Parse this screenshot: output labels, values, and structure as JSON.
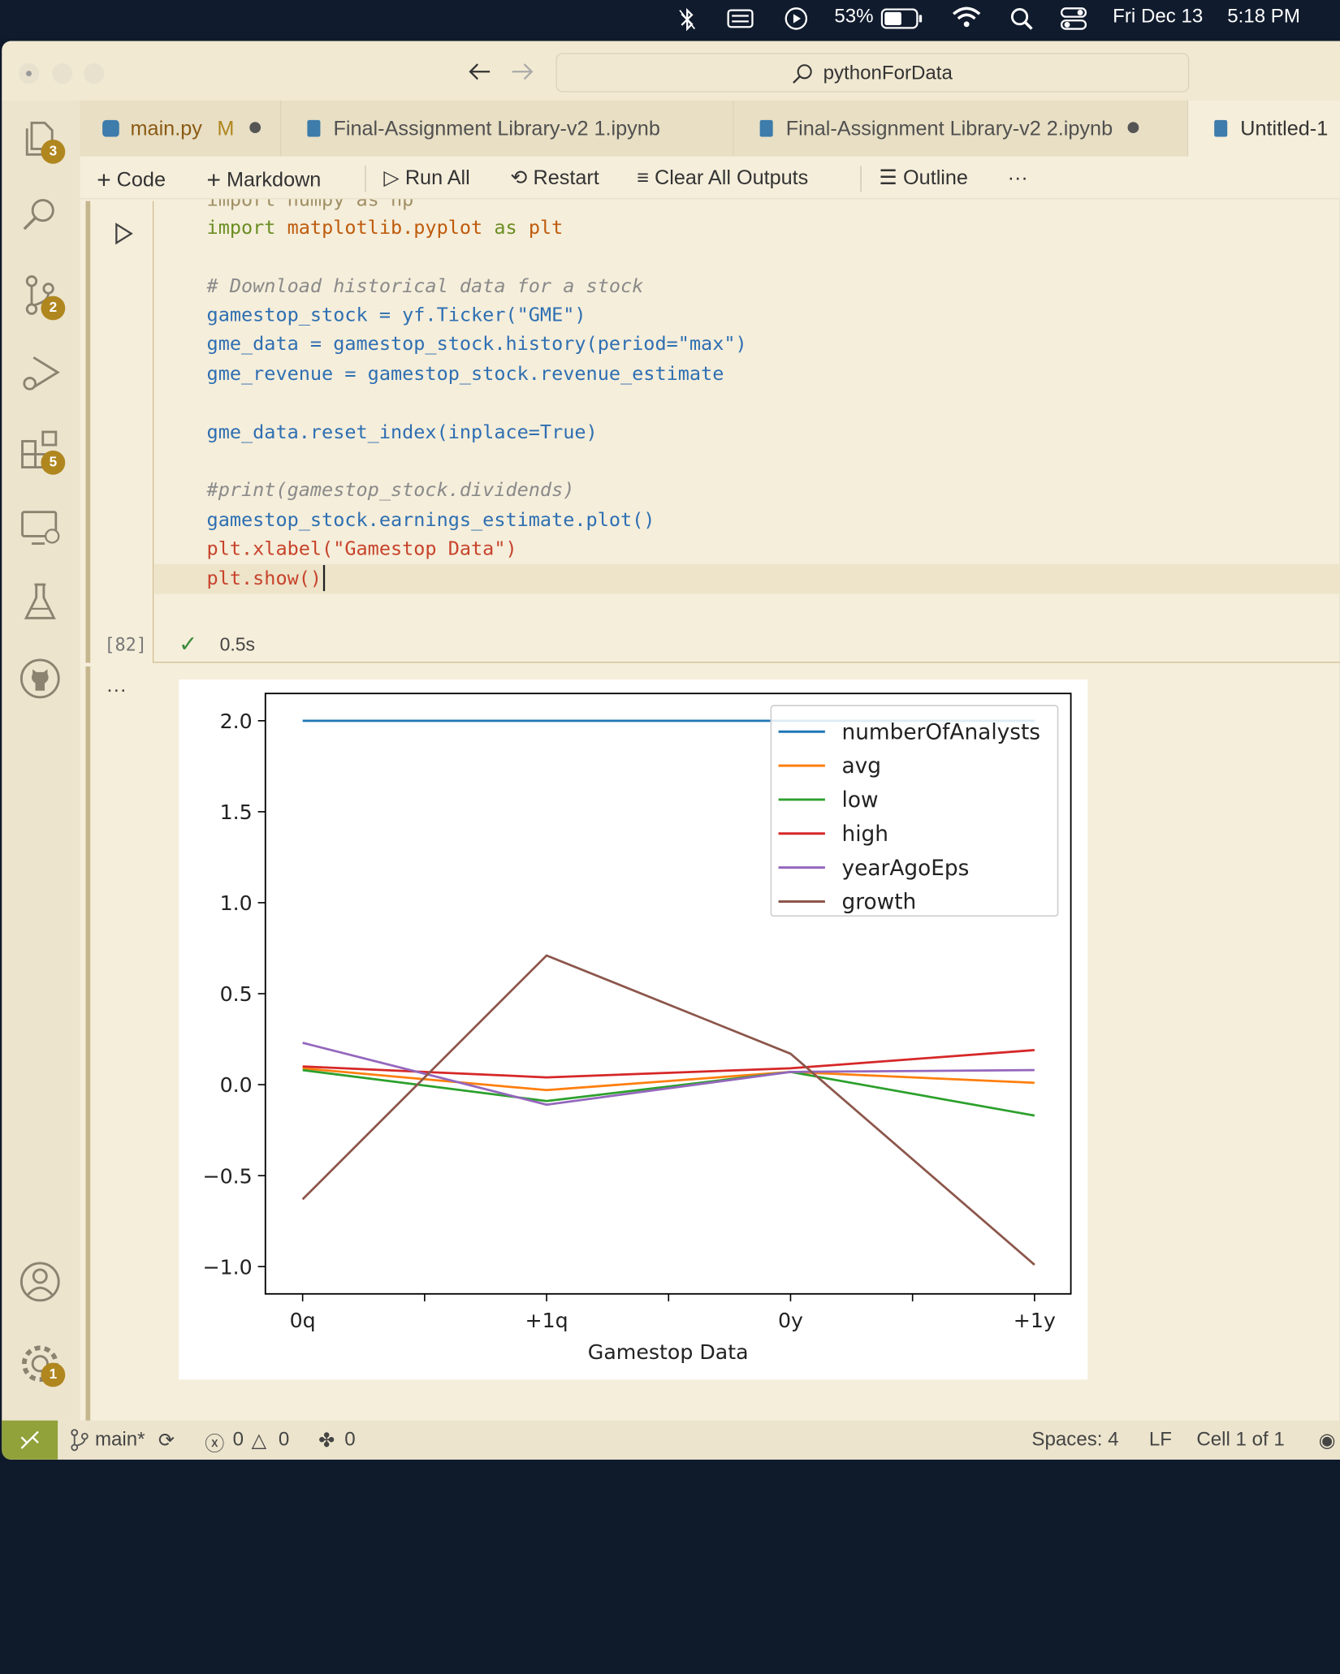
{
  "menubar": {
    "battery": "53%",
    "date": "Fri Dec 13",
    "time": "5:18 PM"
  },
  "command_center": {
    "text": "pythonForData"
  },
  "activity_badges": {
    "explorer": "3",
    "source_control": "2",
    "extensions": "5",
    "settings": "1"
  },
  "tabs": [
    {
      "label": "main.py",
      "status": "M"
    },
    {
      "label": "Final-Assignment Library-v2 1.ipynb"
    },
    {
      "label": "Final-Assignment Library-v2 2.ipynb"
    },
    {
      "label": "Untitled-1"
    }
  ],
  "toolbar": {
    "code": "Code",
    "markdown": "Markdown",
    "run_all": "Run All",
    "restart": "Restart",
    "clear_outputs": "Clear All Outputs",
    "outline": "Outline",
    "more": "···"
  },
  "cell": {
    "lines": {
      "l0": "import numpy as np",
      "l1_kw": "import",
      "l1_mod": "matplotlib",
      "l1_mod2": ".pyplot",
      "l1_as": "as",
      "l1_alias": "plt",
      "comment1": "# Download historical data for a stock",
      "l3": "gamestop_stock = yf.Ticker(\"GME\")",
      "l4": "gme_data = gamestop_stock.history(period=\"max\")",
      "l5": "gme_revenue = gamestop_stock.revenue_estimate",
      "l7": "gme_data.reset_index(inplace=True)",
      "comment2": "#print(gamestop_stock.dividends)",
      "l10": "gamestop_stock.earnings_estimate.plot()",
      "l11": "plt.xlabel(\"Gamestop Data\")",
      "l12": "plt.show()"
    },
    "exec_count": "[82]",
    "duration": "0.5s",
    "output_more": "···"
  },
  "chart_data": {
    "type": "line",
    "categories": [
      "0q",
      "+1q",
      "0y",
      "+1y"
    ],
    "xlabel": "Gamestop Data",
    "ylabel": "",
    "ylim": [
      -1.15,
      2.15
    ],
    "yticks": [
      -1.0,
      -0.5,
      0.0,
      0.5,
      1.0,
      1.5,
      2.0
    ],
    "ytick_labels": [
      "−1.0",
      "−0.5",
      "0.0",
      "0.5",
      "1.0",
      "1.5",
      "2.0"
    ],
    "grid": false,
    "legend_position": "top-right",
    "series": [
      {
        "name": "numberOfAnalysts",
        "color": "#1f77b4",
        "values": [
          2.0,
          2.0,
          2.0,
          2.0
        ]
      },
      {
        "name": "avg",
        "color": "#ff7f0e",
        "values": [
          0.09,
          -0.03,
          0.07,
          0.01
        ]
      },
      {
        "name": "low",
        "color": "#2ca02c",
        "values": [
          0.08,
          -0.09,
          0.07,
          -0.17
        ]
      },
      {
        "name": "high",
        "color": "#d62728",
        "values": [
          0.1,
          0.04,
          0.09,
          0.19
        ]
      },
      {
        "name": "yearAgoEps",
        "color": "#9467bd",
        "values": [
          0.23,
          -0.11,
          0.07,
          0.08
        ]
      },
      {
        "name": "growth",
        "color": "#8c564b",
        "values": [
          -0.63,
          0.71,
          0.17,
          -0.99
        ]
      }
    ]
  },
  "statusbar": {
    "branch": "main*",
    "errors": "0",
    "warnings": "0",
    "ports": "0",
    "spaces": "Spaces: 4",
    "eol": "LF",
    "cell": "Cell 1 of 1"
  }
}
